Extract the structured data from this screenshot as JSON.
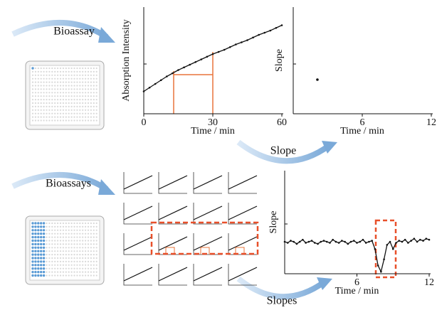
{
  "labels": {
    "bioassay": "Bioassay",
    "bioassays": "Bioassays",
    "slope": "Slope",
    "slopes": "Slopes"
  },
  "chart_data": [
    {
      "type": "line",
      "xlabel": "Time / min",
      "ylabel": "Absorption Intensity",
      "x": [
        0,
        2.5,
        5,
        7.5,
        10,
        12.5,
        15,
        17.5,
        20,
        22.5,
        25,
        27.5,
        30,
        32.5,
        35,
        37.5,
        40,
        42.5,
        45,
        47.5,
        50,
        52.5,
        55,
        57.5,
        60
      ],
      "series": [
        {
          "color": "#111111",
          "values": [
            0.21,
            0.245,
            0.28,
            0.315,
            0.35,
            0.38,
            0.41,
            0.435,
            0.46,
            0.485,
            0.51,
            0.535,
            0.56,
            0.58,
            0.6,
            0.625,
            0.65,
            0.67,
            0.69,
            0.715,
            0.74,
            0.76,
            0.78,
            0.805,
            0.83
          ]
        }
      ],
      "xlim": [
        0,
        60
      ],
      "ylim": [
        0,
        1
      ],
      "xticks": [
        0,
        30,
        60
      ]
    },
    {
      "type": "scatter",
      "xlabel": "Time / min",
      "ylabel": "Slope",
      "x": [
        2.1
      ],
      "series": [
        {
          "color": "#111111",
          "values": [
            0.32
          ]
        }
      ],
      "xlim": [
        0,
        12
      ],
      "ylim": [
        0,
        1
      ],
      "xticks": [
        6,
        12
      ]
    },
    {
      "type": "line",
      "xlabel": "Time / min",
      "ylabel": "Slope",
      "x": [
        0,
        0.25,
        0.5,
        0.75,
        1,
        1.25,
        1.5,
        1.75,
        2,
        2.25,
        2.5,
        2.75,
        3,
        3.25,
        3.5,
        3.75,
        4,
        4.25,
        4.5,
        4.75,
        5,
        5.25,
        5.5,
        5.75,
        6,
        6.25,
        6.5,
        6.75,
        7,
        7.25,
        7.5,
        7.75,
        8,
        8.25,
        8.5,
        8.75,
        9,
        9.25,
        9.5,
        9.75,
        10,
        10.25,
        10.5,
        10.75,
        11,
        11.25,
        11.5,
        11.75,
        12
      ],
      "series": [
        {
          "color": "#111111",
          "values": [
            0.31,
            0.3,
            0.32,
            0.31,
            0.29,
            0.31,
            0.33,
            0.3,
            0.31,
            0.32,
            0.3,
            0.29,
            0.31,
            0.32,
            0.31,
            0.3,
            0.33,
            0.31,
            0.3,
            0.32,
            0.31,
            0.29,
            0.31,
            0.32,
            0.3,
            0.31,
            0.33,
            0.3,
            0.31,
            0.32,
            0.24,
            0.08,
            0.02,
            0.14,
            0.28,
            0.31,
            0.24,
            0.3,
            0.32,
            0.31,
            0.33,
            0.3,
            0.32,
            0.34,
            0.31,
            0.33,
            0.32,
            0.34,
            0.33
          ]
        }
      ],
      "xlim": [
        0,
        12
      ],
      "ylim": [
        0,
        1
      ],
      "xticks": [
        6,
        12
      ]
    }
  ]
}
